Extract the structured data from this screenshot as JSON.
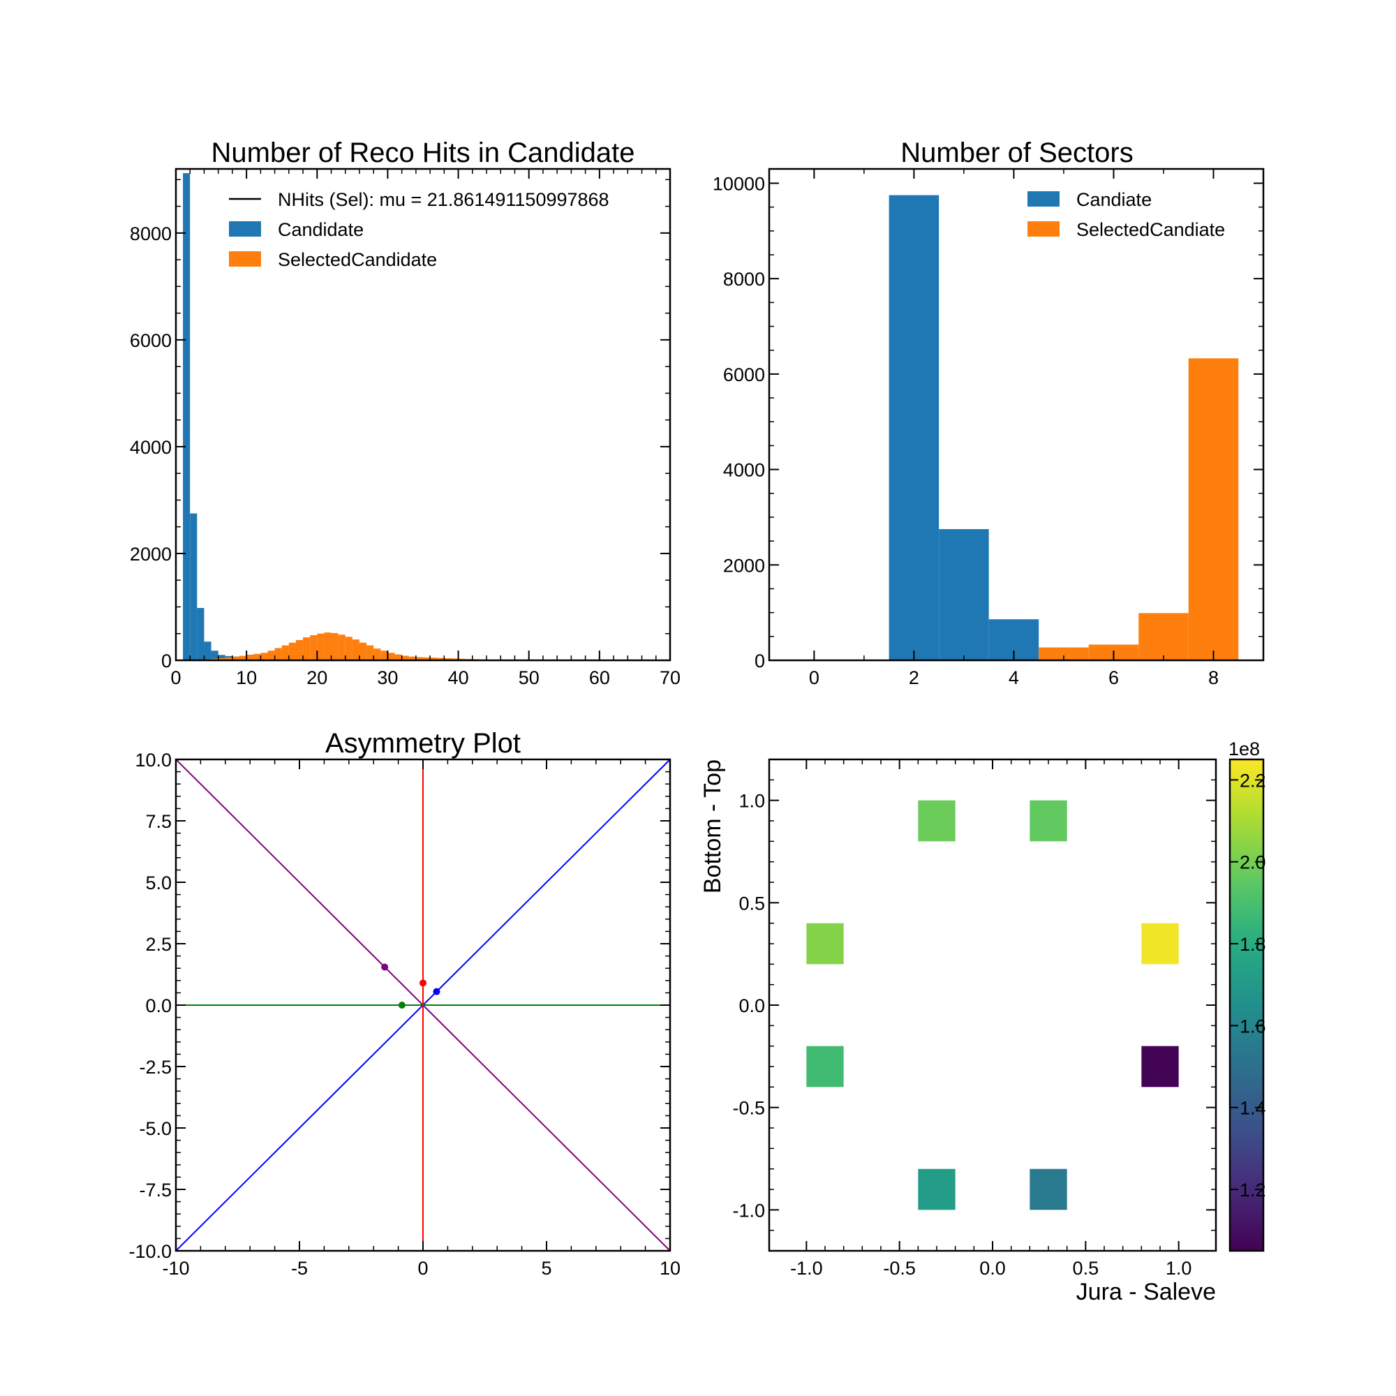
{
  "chart_data": [
    {
      "id": "hits",
      "type": "bar",
      "title": "Number of Reco Hits in Candidate",
      "xlabel": "",
      "ylabel": "",
      "xlim": [
        0,
        70
      ],
      "ylim": [
        0,
        9200
      ],
      "xticks": [
        0,
        10,
        20,
        30,
        40,
        50,
        60,
        70
      ],
      "yticks": [
        0,
        2000,
        4000,
        6000,
        8000
      ],
      "bin_width": 1,
      "legend_position": "top-right",
      "legend": [
        {
          "label": "NHits (Sel): mu = 21.861491150997868",
          "kind": "line",
          "color": "#000000"
        },
        {
          "label": "Candidate",
          "kind": "patch",
          "color": "#1f77b4"
        },
        {
          "label": "SelectedCandidate",
          "kind": "patch",
          "color": "#ff7f0e"
        }
      ],
      "series": [
        {
          "name": "Candidate",
          "color": "#1f77b4",
          "bins": [
            [
              1,
              9120
            ],
            [
              2,
              2750
            ],
            [
              3,
              980
            ],
            [
              4,
              350
            ],
            [
              5,
              180
            ],
            [
              6,
              100
            ],
            [
              7,
              80
            ],
            [
              8,
              70
            ],
            [
              9,
              60
            ],
            [
              10,
              50
            ]
          ]
        },
        {
          "name": "SelectedCandidate",
          "color": "#ff7f0e",
          "bins": [
            [
              4,
              20
            ],
            [
              5,
              30
            ],
            [
              6,
              40
            ],
            [
              7,
              55
            ],
            [
              8,
              70
            ],
            [
              9,
              85
            ],
            [
              10,
              105
            ],
            [
              11,
              120
            ],
            [
              12,
              140
            ],
            [
              13,
              180
            ],
            [
              14,
              230
            ],
            [
              15,
              280
            ],
            [
              16,
              330
            ],
            [
              17,
              380
            ],
            [
              18,
              430
            ],
            [
              19,
              470
            ],
            [
              20,
              500
            ],
            [
              21,
              520
            ],
            [
              22,
              510
            ],
            [
              23,
              480
            ],
            [
              24,
              440
            ],
            [
              25,
              390
            ],
            [
              26,
              330
            ],
            [
              27,
              280
            ],
            [
              28,
              220
            ],
            [
              29,
              180
            ],
            [
              30,
              140
            ],
            [
              31,
              110
            ],
            [
              32,
              85
            ],
            [
              33,
              70
            ],
            [
              34,
              60
            ],
            [
              35,
              55
            ],
            [
              36,
              50
            ],
            [
              37,
              45
            ],
            [
              38,
              40
            ],
            [
              39,
              35
            ],
            [
              40,
              30
            ],
            [
              41,
              25
            ],
            [
              42,
              20
            ],
            [
              43,
              15
            ],
            [
              44,
              10
            ],
            [
              45,
              8
            ],
            [
              46,
              6
            ],
            [
              47,
              5
            ],
            [
              48,
              4
            ],
            [
              49,
              3
            ],
            [
              50,
              2
            ]
          ]
        }
      ]
    },
    {
      "id": "sectors",
      "type": "bar",
      "title": "Number of Sectors",
      "xlabel": "",
      "ylabel": "",
      "xlim": [
        -0.9,
        9.0
      ],
      "ylim": [
        0,
        10300
      ],
      "xticks": [
        0,
        2,
        4,
        6,
        8
      ],
      "yticks": [
        0,
        2000,
        4000,
        6000,
        8000,
        10000
      ],
      "bin_width": 1,
      "legend_position": "top-right",
      "legend": [
        {
          "label": "Candiate",
          "kind": "patch",
          "color": "#1f77b4"
        },
        {
          "label": "SelectedCandiate",
          "kind": "patch",
          "color": "#ff7f0e"
        }
      ],
      "series": [
        {
          "name": "Candiate",
          "color": "#1f77b4",
          "bins": [
            [
              1.5,
              9750
            ],
            [
              2.5,
              2750
            ],
            [
              3.5,
              860
            ]
          ]
        },
        {
          "name": "SelectedCandiate",
          "color": "#ff7f0e",
          "bins": [
            [
              4.5,
              270
            ],
            [
              5.5,
              330
            ],
            [
              6.5,
              990
            ],
            [
              7.5,
              6330
            ]
          ]
        }
      ]
    },
    {
      "id": "asym",
      "type": "line",
      "title": "Asymmetry Plot",
      "xlabel": "",
      "ylabel": "",
      "xlim": [
        -10,
        10
      ],
      "ylim": [
        -10,
        10
      ],
      "xticks": [
        -10,
        -5,
        0,
        5,
        10
      ],
      "yticks": [
        -10.0,
        -7.5,
        -5.0,
        -2.5,
        0.0,
        2.5,
        5.0,
        7.5,
        10.0
      ],
      "lines": [
        {
          "color": "#800080",
          "x": [
            -10,
            10
          ],
          "y": [
            10,
            -10
          ]
        },
        {
          "color": "#0000ff",
          "x": [
            -10,
            10
          ],
          "y": [
            -10,
            10
          ]
        },
        {
          "color": "#ff0000",
          "x": [
            0,
            0
          ],
          "y": [
            -10,
            10
          ]
        },
        {
          "color": "#008000",
          "x": [
            -10,
            10
          ],
          "y": [
            0,
            0
          ]
        }
      ],
      "points": [
        {
          "color": "#800080",
          "x": -1.55,
          "y": 1.55
        },
        {
          "color": "#ff0000",
          "x": 0.0,
          "y": 0.9
        },
        {
          "color": "#0000ff",
          "x": 0.55,
          "y": 0.55
        },
        {
          "color": "#008000",
          "x": -0.85,
          "y": 0.0
        }
      ]
    },
    {
      "id": "heat",
      "type": "heatmap",
      "title": "",
      "xlabel": "Jura - Saleve",
      "ylabel": "Bottom - Top",
      "xlim": [
        -1.2,
        1.2
      ],
      "ylim": [
        -1.2,
        1.2
      ],
      "xticks": [
        -1.0,
        -0.5,
        0.0,
        0.5,
        1.0
      ],
      "yticks": [
        -1.0,
        -0.5,
        0.0,
        0.5,
        1.0
      ],
      "cell_size": 0.2,
      "colormap": "viridis",
      "color_range": [
        1.05,
        2.25
      ],
      "colorbar_ticks": [
        1.2,
        1.4,
        1.6,
        1.8,
        2.0,
        2.2
      ],
      "colorbar_exponent": "1e8",
      "cells": [
        {
          "x": -0.3,
          "y": 0.9,
          "value": 1.98
        },
        {
          "x": 0.3,
          "y": 0.9,
          "value": 1.96
        },
        {
          "x": -0.9,
          "y": 0.3,
          "value": 2.03
        },
        {
          "x": 0.9,
          "y": 0.3,
          "value": 2.23
        },
        {
          "x": -0.9,
          "y": -0.3,
          "value": 1.88
        },
        {
          "x": 0.9,
          "y": -0.3,
          "value": 1.06
        },
        {
          "x": -0.3,
          "y": -0.9,
          "value": 1.72
        },
        {
          "x": 0.3,
          "y": -0.9,
          "value": 1.55
        }
      ]
    }
  ]
}
